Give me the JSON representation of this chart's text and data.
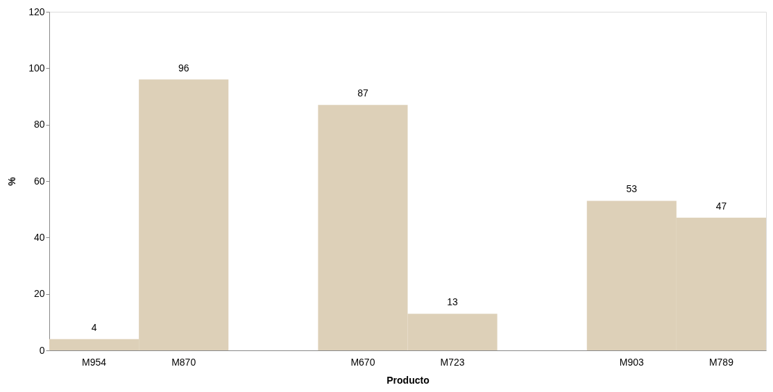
{
  "chart_data": {
    "type": "bar",
    "xlabel": "Producto",
    "ylabel": "%",
    "categories": [
      "M954",
      "M870",
      null,
      "M670",
      "M723",
      null,
      "M903",
      "M789"
    ],
    "values": [
      4,
      96,
      null,
      87,
      13,
      null,
      53,
      47
    ],
    "color": "#ddd0b8",
    "ylim": [
      0,
      120
    ],
    "yticks": [
      0,
      20,
      40,
      60,
      80,
      100,
      120
    ],
    "grid": false,
    "data_labels": true
  }
}
